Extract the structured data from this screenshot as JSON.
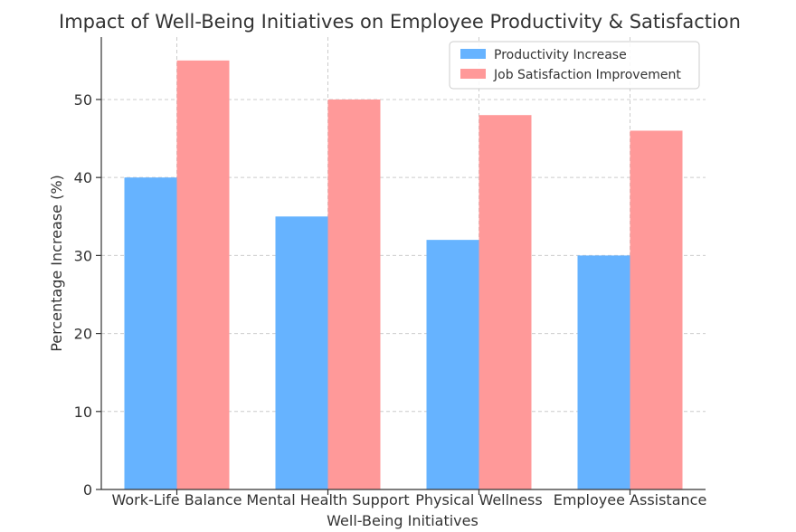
{
  "chart_data": {
    "type": "bar",
    "title": "Impact of Well-Being Initiatives on Employee Productivity & Satisfaction",
    "xlabel": "Well-Being Initiatives",
    "ylabel": "Percentage Increase (%)",
    "categories": [
      "Work-Life Balance",
      "Mental Health Support",
      "Physical Wellness",
      "Employee Assistance"
    ],
    "series": [
      {
        "name": "Productivity Increase",
        "values": [
          40,
          35,
          32,
          30
        ],
        "color": "#66b3ff"
      },
      {
        "name": "Job Satisfaction Improvement",
        "values": [
          55,
          50,
          48,
          46
        ],
        "color": "#ff9999"
      }
    ],
    "ylim": [
      0,
      58
    ],
    "yticks": [
      0,
      10,
      20,
      30,
      40,
      50
    ],
    "grid": true,
    "legend_position": "top-right"
  }
}
